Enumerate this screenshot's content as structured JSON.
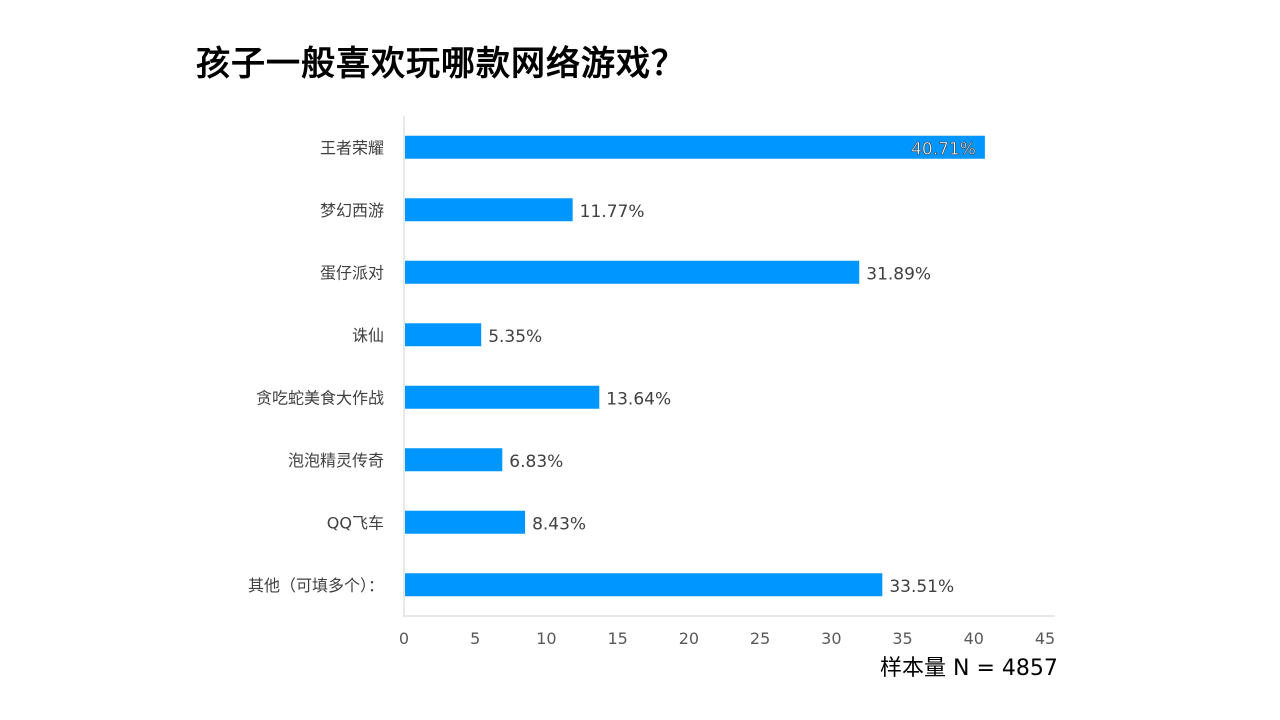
{
  "page": {
    "title": "孩子一般喜欢玩哪款网络游戏？",
    "sample_note": "样本量 N = 4857"
  },
  "chart_data": {
    "type": "bar",
    "orientation": "horizontal",
    "categories": [
      "王者荣耀",
      "梦幻西游",
      "蛋仔派对",
      "诛仙",
      "贪吃蛇美食大作战",
      "泡泡精灵传奇",
      "QQ飞车",
      "其他（可填多个）："
    ],
    "values": [
      40.71,
      11.77,
      31.89,
      5.35,
      13.64,
      6.83,
      8.43,
      33.51
    ],
    "value_labels": [
      "40.71%",
      "11.77%",
      "31.89%",
      "5.35%",
      "13.64%",
      "6.83%",
      "8.43%",
      "33.51%"
    ],
    "xlim": [
      0,
      45
    ],
    "xticks": [
      0,
      5,
      10,
      15,
      20,
      25,
      30,
      35,
      40,
      45
    ],
    "grid": false,
    "colors": {
      "bar": "#0096FF",
      "axis": "#D9D9D9",
      "tick_text": "#595959",
      "label_text": "#404040"
    }
  }
}
